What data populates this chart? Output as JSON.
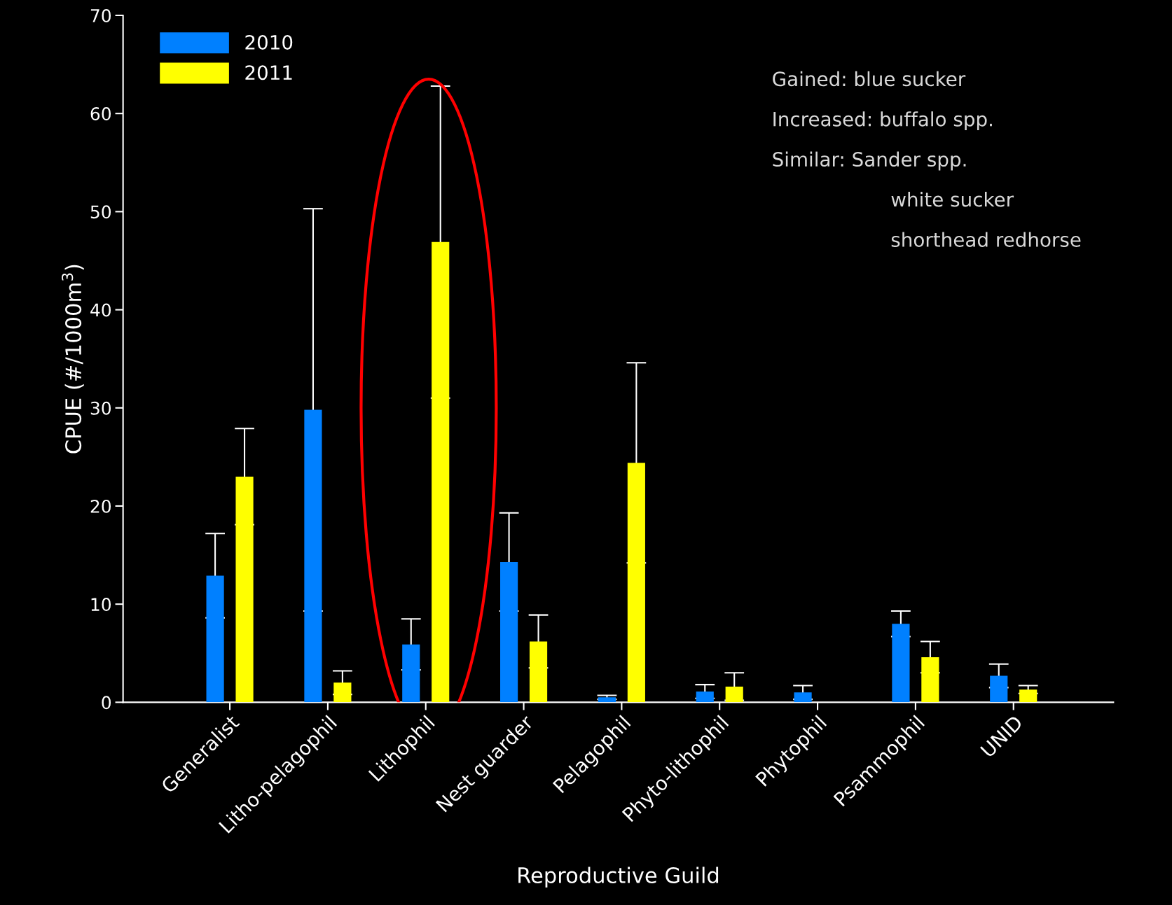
{
  "chart_data": {
    "type": "bar",
    "xlabel": "Reproductive Guild",
    "ylabel": "CPUE (#/1000m$^{3}$)",
    "categories": [
      "Generalist",
      "Litho-pelagophil",
      "Lithophil",
      "Nest guarder",
      "Pelagophil",
      "Phyto-lithophil",
      "Phytophil",
      "Psammophil",
      "UNID"
    ],
    "series": [
      {
        "name": "2010",
        "color": "#0080ff",
        "values": [
          12.9,
          29.8,
          5.9,
          14.3,
          0.5,
          1.1,
          1.0,
          8.0,
          2.7
        ],
        "errors": [
          4.3,
          20.5,
          2.6,
          5.0,
          0.2,
          0.7,
          0.7,
          1.3,
          1.2
        ]
      },
      {
        "name": "2011",
        "color": "#ffff00",
        "values": [
          23.0,
          2.0,
          46.9,
          6.2,
          24.4,
          1.6,
          null,
          4.6,
          1.3
        ],
        "errors": [
          4.9,
          1.2,
          15.9,
          2.7,
          10.2,
          1.4,
          null,
          1.6,
          0.4
        ]
      }
    ],
    "ylim": [
      0,
      70
    ],
    "yticks": [
      0,
      10,
      20,
      30,
      40,
      50,
      60,
      70
    ],
    "grid": false,
    "legend": "top left",
    "annotations": [
      "Gained: blue sucker",
      "Increased: buffalo spp.",
      "Similar: Sander spp.",
      "white sucker",
      "shorthead redhorse"
    ]
  }
}
